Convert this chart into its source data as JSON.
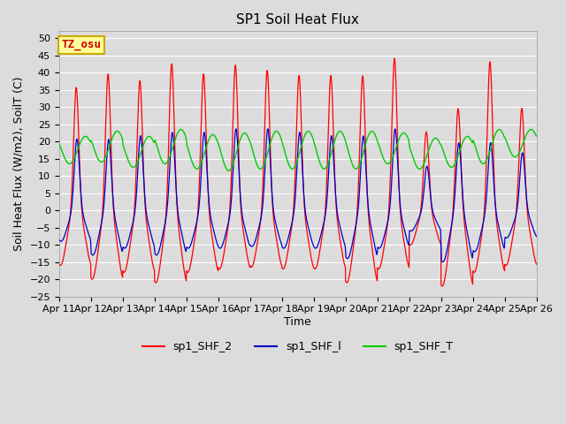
{
  "title": "SP1 Soil Heat Flux",
  "xlabel": "Time",
  "ylabel": "Soil Heat Flux (W/m2), SoilT (C)",
  "ylim": [
    -25,
    52
  ],
  "yticks": [
    -25,
    -20,
    -15,
    -10,
    -5,
    0,
    5,
    10,
    15,
    20,
    25,
    30,
    35,
    40,
    45,
    50
  ],
  "color_shf2": "#ff0000",
  "color_shf1": "#0000cc",
  "color_shft": "#00cc00",
  "legend_labels": [
    "sp1_SHF_2",
    "sp1_SHF_l",
    "sp1_SHF_T"
  ],
  "annotation_text": "TZ_osu",
  "annotation_color": "#cc0000",
  "annotation_bg": "#ffff99",
  "annotation_border": "#ccaa00",
  "bg_color": "#dcdcdc",
  "plot_bg_color": "#dcdcdc",
  "grid_color": "#ffffff",
  "fig_bg_color": "#dcdcdc",
  "title_fontsize": 11,
  "label_fontsize": 9,
  "tick_fontsize": 8,
  "num_days": 15,
  "start_day": 11,
  "points_per_day": 288
}
